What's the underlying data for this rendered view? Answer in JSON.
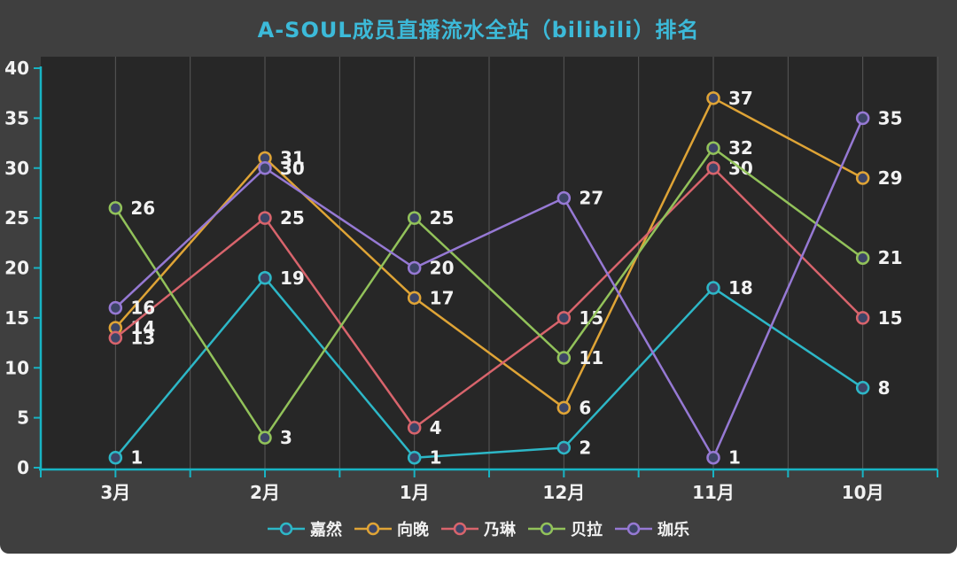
{
  "page": {
    "background": "#ffffff",
    "card_background": "#3f3f3f"
  },
  "chart_data": {
    "type": "line",
    "title": "A-SOUL成员直播流水全站（bilibili）排名",
    "title_color": "#3cbad9",
    "categories": [
      "3月",
      "2月",
      "1月",
      "12月",
      "11月",
      "10月"
    ],
    "series": [
      {
        "name": "嘉然",
        "id": "jiaran",
        "color": "#2db7c7",
        "values": [
          1,
          19,
          1,
          2,
          18,
          8
        ]
      },
      {
        "name": "向晚",
        "id": "xiangwan",
        "color": "#dfa436",
        "values": [
          14,
          31,
          17,
          6,
          37,
          29
        ]
      },
      {
        "name": "乃琳",
        "id": "nailin",
        "color": "#d8646c",
        "values": [
          13,
          25,
          4,
          15,
          30,
          15
        ]
      },
      {
        "name": "贝拉",
        "id": "bella",
        "color": "#92c25a",
        "values": [
          26,
          3,
          25,
          11,
          32,
          21
        ]
      },
      {
        "name": "珈乐",
        "id": "carol",
        "color": "#9679d4",
        "values": [
          16,
          30,
          20,
          27,
          1,
          35
        ]
      }
    ],
    "xlabel": "",
    "ylabel": "",
    "ylim": [
      0,
      40
    ],
    "yticks": [
      0,
      5,
      10,
      15,
      20,
      25,
      30,
      35,
      40
    ],
    "grid": "vertical-only",
    "legend_position": "bottom",
    "data_labels": "shown right of each point",
    "colors": {
      "axis": "#18b4c4",
      "plot_background": "#272727",
      "gridline": "#585858",
      "marker_fill": "#3d4566",
      "text": "#f2f2f2"
    }
  }
}
